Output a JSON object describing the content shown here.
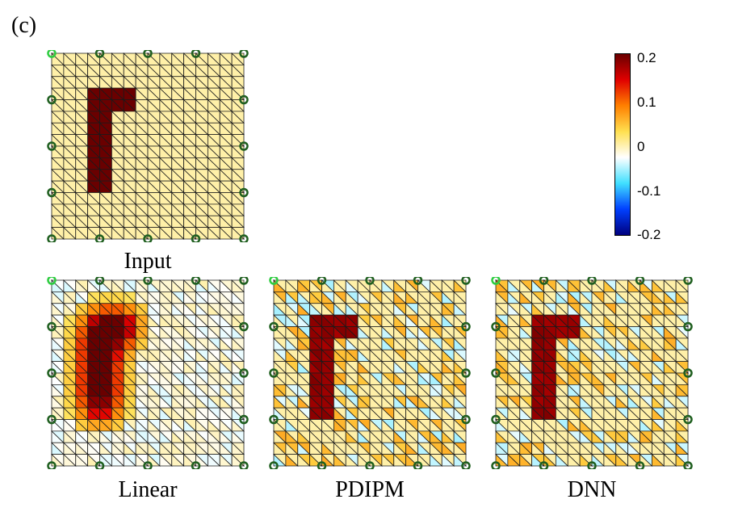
{
  "panel_label": "(c)",
  "colorbar": {
    "ticks": [
      "0.2",
      "0.1",
      "0",
      "-0.1",
      "-0.2"
    ],
    "range": [
      -0.2,
      0.2
    ],
    "colormap": [
      "#00007f",
      "#0040ff",
      "#40e0ff",
      "#ffffff",
      "#ffe050",
      "#ff8000",
      "#e00000",
      "#6a0000"
    ]
  },
  "grid": {
    "cells": 16
  },
  "panels": [
    {
      "id": "input",
      "title": "Input",
      "mode": "input"
    },
    {
      "id": "linear",
      "title": "Linear",
      "mode": "linear"
    },
    {
      "id": "pdipm",
      "title": "PDIPM",
      "mode": "pdipm"
    },
    {
      "id": "dnn",
      "title": "DNN",
      "mode": "dnn"
    }
  ]
}
